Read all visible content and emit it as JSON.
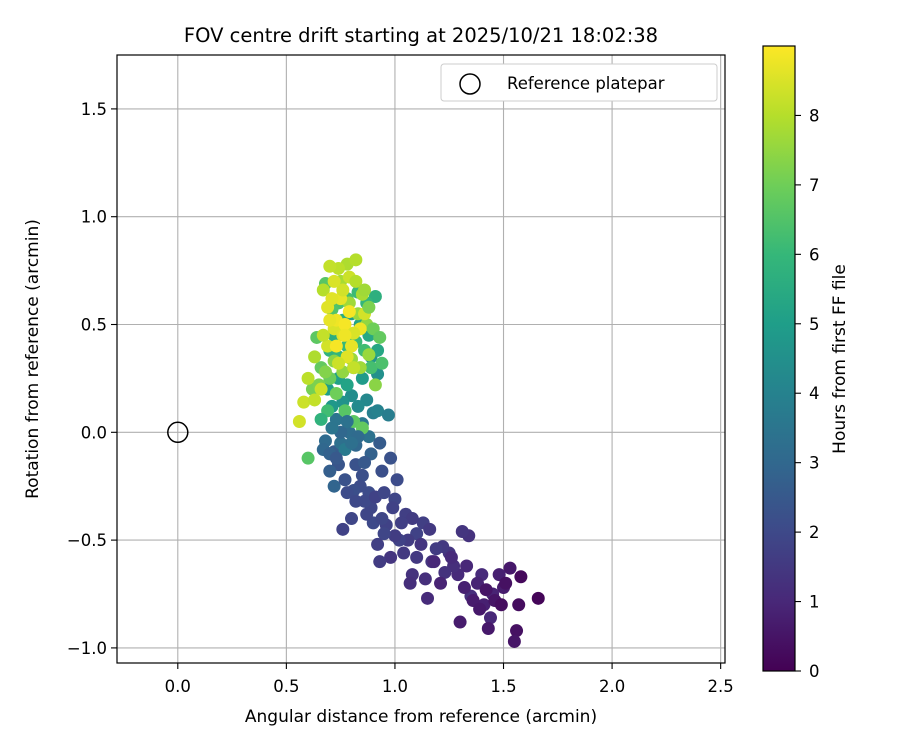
{
  "chart_data": {
    "type": "scatter",
    "title": "FOV centre drift starting at 2025/10/21 18:02:38",
    "xlabel": "Angular distance from reference (arcmin)",
    "ylabel": "Rotation from reference (arcmin)",
    "xlim": [
      -0.28,
      2.52
    ],
    "ylim": [
      -1.07,
      1.75
    ],
    "xticks": [
      0.0,
      0.5,
      1.0,
      1.5,
      2.0,
      2.5
    ],
    "xtick_labels": [
      "0.0",
      "0.5",
      "1.0",
      "1.5",
      "2.0",
      "2.5"
    ],
    "yticks": [
      -1.0,
      -0.5,
      0.0,
      0.5,
      1.0,
      1.5
    ],
    "ytick_labels": [
      "−1.0",
      "−0.5",
      "0.0",
      "0.5",
      "1.0",
      "1.5"
    ],
    "grid": true,
    "legend": {
      "position": "top-right",
      "entries": [
        {
          "label": "Reference platepar",
          "marker": "open-circle"
        }
      ]
    },
    "reference_point": {
      "x": 0.0,
      "y": 0.0
    },
    "colorbar": {
      "label": "Hours from first FF file",
      "range": [
        0,
        9
      ],
      "ticks": [
        0,
        1,
        2,
        3,
        4,
        5,
        6,
        7,
        8
      ],
      "tick_labels": [
        "0",
        "1",
        "2",
        "3",
        "4",
        "5",
        "6",
        "7",
        "8"
      ],
      "colormap": [
        "#440154",
        "#482878",
        "#3e4989",
        "#31688e",
        "#26828e",
        "#1f9e89",
        "#35b779",
        "#6ece58",
        "#b5de2b",
        "#fde725"
      ]
    },
    "series": [
      {
        "name": "FOV centre",
        "points": [
          [
            1.66,
            -0.77,
            0.1
          ],
          [
            1.58,
            -0.67,
            0.2
          ],
          [
            1.57,
            -0.8,
            0.3
          ],
          [
            1.56,
            -0.92,
            0.4
          ],
          [
            1.55,
            -0.97,
            0.5
          ],
          [
            1.53,
            -0.63,
            0.6
          ],
          [
            1.5,
            -0.72,
            0.7
          ],
          [
            1.48,
            -0.66,
            0.8
          ],
          [
            1.45,
            -0.75,
            0.9
          ],
          [
            1.44,
            -0.86,
            1.0
          ],
          [
            1.43,
            -0.91,
            0.6
          ],
          [
            1.41,
            -0.8,
            0.8
          ],
          [
            1.4,
            -0.66,
            1.1
          ],
          [
            1.38,
            -0.7,
            0.9
          ],
          [
            1.35,
            -0.76,
            1.2
          ],
          [
            1.34,
            -0.48,
            1.3
          ],
          [
            1.33,
            -0.62,
            1.0
          ],
          [
            1.31,
            -0.46,
            1.4
          ],
          [
            1.3,
            -0.88,
            0.7
          ],
          [
            1.29,
            -0.66,
            1.1
          ],
          [
            1.27,
            -0.62,
            1.2
          ],
          [
            1.25,
            -0.56,
            1.4
          ],
          [
            1.23,
            -0.65,
            1.3
          ],
          [
            1.22,
            -0.53,
            1.5
          ],
          [
            1.19,
            -0.54,
            1.6
          ],
          [
            1.17,
            -0.6,
            1.4
          ],
          [
            1.14,
            -0.68,
            1.2
          ],
          [
            1.15,
            -0.77,
            1.1
          ],
          [
            1.13,
            -0.42,
            1.7
          ],
          [
            1.1,
            -0.47,
            1.8
          ],
          [
            1.1,
            -0.58,
            1.5
          ],
          [
            1.08,
            -0.66,
            1.3
          ],
          [
            1.07,
            -0.7,
            1.2
          ],
          [
            1.06,
            -0.5,
            1.6
          ],
          [
            1.05,
            -0.38,
            1.7
          ],
          [
            1.04,
            -0.56,
            1.5
          ],
          [
            1.02,
            -0.5,
            1.8
          ],
          [
            1.0,
            -0.31,
            1.9
          ],
          [
            1.0,
            -0.48,
            1.6
          ],
          [
            0.98,
            -0.58,
            1.4
          ],
          [
            0.96,
            -0.43,
            1.8
          ],
          [
            0.95,
            -0.47,
            1.9
          ],
          [
            0.93,
            -0.6,
            1.6
          ],
          [
            0.92,
            -0.52,
            1.7
          ],
          [
            0.9,
            -0.42,
            2.0
          ],
          [
            0.89,
            -0.35,
            1.9
          ],
          [
            0.88,
            -0.28,
            2.1
          ],
          [
            0.86,
            -0.32,
            2.0
          ],
          [
            0.85,
            -0.2,
            2.2
          ],
          [
            0.84,
            -0.25,
            2.1
          ],
          [
            0.82,
            -0.15,
            2.3
          ],
          [
            0.81,
            -0.27,
            2.2
          ],
          [
            0.8,
            -0.4,
            1.9
          ],
          [
            0.78,
            -0.28,
            2.1
          ],
          [
            0.76,
            -0.45,
            1.8
          ],
          [
            0.74,
            -0.15,
            2.4
          ],
          [
            0.72,
            -0.09,
            2.6
          ],
          [
            0.7,
            -0.18,
            2.7
          ],
          [
            0.68,
            -0.04,
            3.1
          ],
          [
            0.72,
            -0.25,
            2.9
          ],
          [
            0.75,
            -0.05,
            3.3
          ],
          [
            0.73,
            0.06,
            3.5
          ],
          [
            0.77,
            -0.08,
            3.7
          ],
          [
            0.79,
            0.0,
            3.2
          ],
          [
            0.82,
            -0.06,
            3.0
          ],
          [
            0.85,
            0.04,
            3.6
          ],
          [
            0.88,
            -0.02,
            3.4
          ],
          [
            0.9,
            0.09,
            3.9
          ],
          [
            0.92,
            0.1,
            4.0
          ],
          [
            0.87,
            0.15,
            4.2
          ],
          [
            0.83,
            0.12,
            4.3
          ],
          [
            0.8,
            0.17,
            4.4
          ],
          [
            0.76,
            0.14,
            4.6
          ],
          [
            0.71,
            0.12,
            4.8
          ],
          [
            0.69,
            0.2,
            5.0
          ],
          [
            0.74,
            0.25,
            5.1
          ],
          [
            0.78,
            0.22,
            5.2
          ],
          [
            0.81,
            0.3,
            5.0
          ],
          [
            0.85,
            0.25,
            4.9
          ],
          [
            0.89,
            0.35,
            4.7
          ],
          [
            0.92,
            0.27,
            4.5
          ],
          [
            0.92,
            0.38,
            5.3
          ],
          [
            0.88,
            0.45,
            5.4
          ],
          [
            0.84,
            0.5,
            5.2
          ],
          [
            0.8,
            0.55,
            5.0
          ],
          [
            0.76,
            0.52,
            5.5
          ],
          [
            0.72,
            0.45,
            5.6
          ],
          [
            0.7,
            0.38,
            5.8
          ],
          [
            0.74,
            0.35,
            5.9
          ],
          [
            0.78,
            0.4,
            6.0
          ],
          [
            0.82,
            0.42,
            6.1
          ],
          [
            0.86,
            0.38,
            6.2
          ],
          [
            0.89,
            0.3,
            6.3
          ],
          [
            0.91,
            0.63,
            5.7
          ],
          [
            0.87,
            0.6,
            5.9
          ],
          [
            0.83,
            0.65,
            6.1
          ],
          [
            0.78,
            0.62,
            6.3
          ],
          [
            0.74,
            0.6,
            6.4
          ],
          [
            0.71,
            0.57,
            6.5
          ],
          [
            0.68,
            0.69,
            6.6
          ],
          [
            0.64,
            0.44,
            6.7
          ],
          [
            0.66,
            0.3,
            6.8
          ],
          [
            0.7,
            0.25,
            6.9
          ],
          [
            0.73,
            0.18,
            7.0
          ],
          [
            0.77,
            0.1,
            6.6
          ],
          [
            0.81,
            0.05,
            6.7
          ],
          [
            0.85,
            0.02,
            6.8
          ],
          [
            0.6,
            -0.12,
            6.6
          ],
          [
            0.62,
            0.2,
            7.1
          ],
          [
            0.65,
            0.22,
            7.2
          ],
          [
            0.68,
            0.28,
            7.3
          ],
          [
            0.72,
            0.33,
            7.4
          ],
          [
            0.76,
            0.28,
            7.5
          ],
          [
            0.8,
            0.34,
            7.6
          ],
          [
            0.84,
            0.3,
            7.7
          ],
          [
            0.88,
            0.36,
            7.6
          ],
          [
            0.91,
            0.22,
            7.4
          ],
          [
            0.87,
            0.5,
            7.5
          ],
          [
            0.83,
            0.55,
            7.6
          ],
          [
            0.79,
            0.6,
            7.7
          ],
          [
            0.75,
            0.7,
            7.8
          ],
          [
            0.78,
            0.78,
            7.9
          ],
          [
            0.82,
            0.8,
            8.0
          ],
          [
            0.74,
            0.76,
            8.1
          ],
          [
            0.7,
            0.77,
            8.2
          ],
          [
            0.67,
            0.66,
            8.0
          ],
          [
            0.63,
            0.35,
            7.9
          ],
          [
            0.6,
            0.25,
            8.1
          ],
          [
            0.58,
            0.14,
            8.3
          ],
          [
            0.56,
            0.05,
            8.4
          ],
          [
            0.63,
            0.15,
            8.2
          ],
          [
            0.66,
            0.2,
            8.3
          ],
          [
            0.69,
            0.4,
            8.4
          ],
          [
            0.72,
            0.48,
            8.5
          ],
          [
            0.76,
            0.45,
            8.6
          ],
          [
            0.8,
            0.4,
            8.7
          ],
          [
            0.84,
            0.48,
            8.8
          ],
          [
            0.79,
            0.56,
            8.9
          ],
          [
            0.75,
            0.62,
            8.7
          ],
          [
            0.71,
            0.62,
            8.6
          ],
          [
            0.73,
            0.52,
            8.8
          ],
          [
            0.77,
            0.5,
            8.9
          ],
          [
            0.81,
            0.46,
            8.5
          ],
          [
            0.86,
            0.55,
            8.4
          ],
          [
            0.78,
            0.35,
            8.6
          ],
          [
            0.74,
            0.32,
            8.3
          ],
          [
            0.81,
            0.3,
            8.2
          ],
          [
            0.85,
            0.64,
            7.8
          ],
          [
            0.88,
            0.58,
            7.2
          ],
          [
            0.9,
            0.48,
            7.0
          ],
          [
            0.93,
            0.44,
            6.8
          ],
          [
            0.94,
            0.32,
            6.4
          ],
          [
            0.69,
            0.1,
            6.2
          ],
          [
            0.66,
            0.06,
            5.8
          ],
          [
            0.67,
            -0.08,
            3.0
          ],
          [
            0.7,
            -0.1,
            2.8
          ],
          [
            0.73,
            -0.12,
            2.5
          ],
          [
            0.77,
            -0.22,
            2.3
          ],
          [
            0.82,
            -0.32,
            2.0
          ],
          [
            0.87,
            -0.38,
            1.9
          ],
          [
            0.91,
            -0.3,
            1.8
          ],
          [
            0.95,
            -0.28,
            1.9
          ],
          [
            0.98,
            -0.12,
            2.3
          ],
          [
            1.01,
            -0.22,
            2.1
          ],
          [
            0.97,
            0.08,
            3.8
          ],
          [
            0.94,
            -0.18,
            2.2
          ],
          [
            0.93,
            -0.05,
            2.6
          ],
          [
            0.89,
            -0.1,
            2.8
          ],
          [
            0.86,
            -0.14,
            2.5
          ],
          [
            0.83,
            -0.02,
            3.1
          ],
          [
            1.18,
            -0.6,
            1.0
          ],
          [
            1.21,
            -0.7,
            0.9
          ],
          [
            1.26,
            -0.58,
            1.1
          ],
          [
            1.32,
            -0.72,
            0.8
          ],
          [
            1.36,
            -0.78,
            0.7
          ],
          [
            1.39,
            -0.82,
            0.6
          ],
          [
            1.46,
            -0.78,
            0.5
          ],
          [
            1.51,
            -0.7,
            0.4
          ],
          [
            1.49,
            -0.8,
            0.3
          ],
          [
            1.42,
            -0.73,
            0.5
          ],
          [
            1.08,
            -0.4,
            1.6
          ],
          [
            1.03,
            -0.42,
            1.7
          ],
          [
            1.12,
            -0.52,
            1.4
          ],
          [
            1.16,
            -0.45,
            1.5
          ],
          [
            0.99,
            -0.35,
            1.8
          ],
          [
            0.94,
            -0.4,
            1.9
          ],
          [
            0.78,
            0.05,
            3.4
          ],
          [
            0.8,
            -0.05,
            3.3
          ],
          [
            0.75,
            0.0,
            3.0
          ],
          [
            0.71,
            0.02,
            3.5
          ],
          [
            0.79,
            0.72,
            8.3
          ],
          [
            0.76,
            0.66,
            8.4
          ],
          [
            0.72,
            0.7,
            8.5
          ],
          [
            0.69,
            0.58,
            8.6
          ],
          [
            0.82,
            0.7,
            8.0
          ],
          [
            0.86,
            0.66,
            7.7
          ],
          [
            0.77,
            0.45,
            8.8
          ],
          [
            0.73,
            0.4,
            8.9
          ],
          [
            0.7,
            0.52,
            8.7
          ],
          [
            0.67,
            0.45,
            8.2
          ]
        ]
      }
    ]
  }
}
